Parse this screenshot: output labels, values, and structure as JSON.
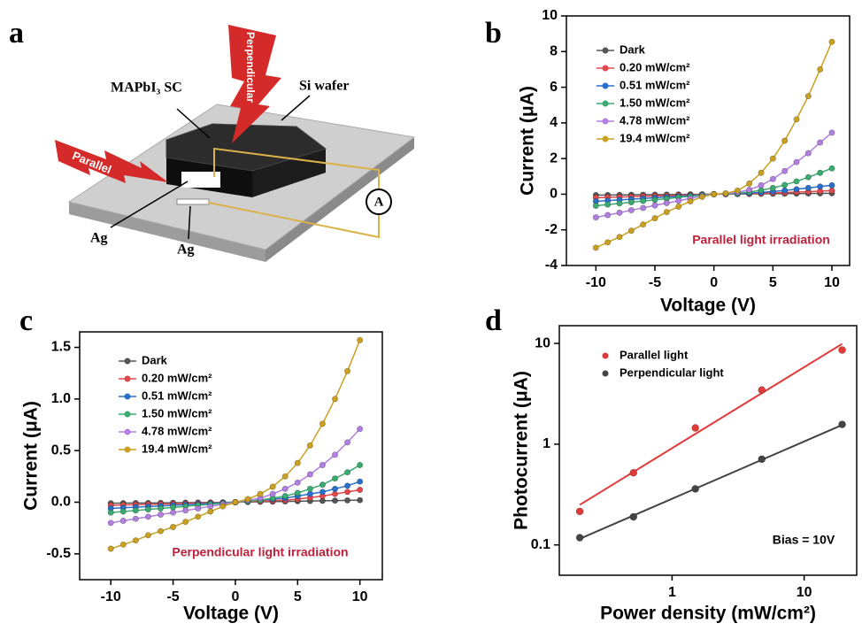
{
  "diagram": {
    "label": "a",
    "perpendicular": "Perpendicular",
    "parallel": "Parallel",
    "crystal": "MAPbI₃ SC",
    "substrate": "Si wafer",
    "electrode_top": "Ag",
    "electrode_bottom": "Ag",
    "meter": "A"
  },
  "chart_data": [
    {
      "type": "line",
      "label": "b",
      "xlabel": "Voltage (V)",
      "ylabel": "Current (μA)",
      "annotation": "Parallel light irradiation",
      "annotation_color": "#c0203a",
      "x": [
        -10,
        -9,
        -8,
        -7,
        -6,
        -5,
        -4,
        -3,
        -2,
        -1,
        0,
        1,
        2,
        3,
        4,
        5,
        6,
        7,
        8,
        9,
        10
      ],
      "xlim": [
        -12.5,
        11.5
      ],
      "xticks": [
        -10,
        -5,
        0,
        5,
        10
      ],
      "ylim": [
        -4,
        10
      ],
      "yticks": [
        -4,
        -2,
        0,
        2,
        4,
        6,
        8,
        10
      ],
      "series": [
        {
          "name": "Dark",
          "color": "#555555",
          "values": [
            -0.05,
            -0.045,
            -0.04,
            -0.035,
            -0.03,
            -0.025,
            -0.02,
            -0.015,
            -0.01,
            -0.005,
            0,
            0.005,
            0.01,
            0.015,
            0.02,
            0.025,
            0.03,
            0.035,
            0.04,
            0.045,
            0.05
          ]
        },
        {
          "name": "0.20 mW/cm²",
          "color": "#e0484c",
          "values": [
            -0.2,
            -0.18,
            -0.16,
            -0.14,
            -0.12,
            -0.1,
            -0.08,
            -0.06,
            -0.04,
            -0.02,
            0,
            0.01,
            0.02,
            0.03,
            0.05,
            0.07,
            0.09,
            0.12,
            0.14,
            0.17,
            0.2
          ]
        },
        {
          "name": "0.51 mW/cm²",
          "color": "#2a6fc9",
          "values": [
            -0.4,
            -0.36,
            -0.32,
            -0.28,
            -0.24,
            -0.2,
            -0.16,
            -0.12,
            -0.08,
            -0.04,
            0,
            0.01,
            0.03,
            0.06,
            0.1,
            0.15,
            0.21,
            0.28,
            0.35,
            0.43,
            0.5
          ]
        },
        {
          "name": "1.50 mW/cm²",
          "color": "#3aaa70",
          "values": [
            -0.65,
            -0.58,
            -0.52,
            -0.45,
            -0.38,
            -0.32,
            -0.25,
            -0.18,
            -0.12,
            -0.05,
            0,
            0.02,
            0.05,
            0.12,
            0.22,
            0.35,
            0.52,
            0.72,
            0.95,
            1.2,
            1.45
          ]
        },
        {
          "name": "4.78 mW/cm²",
          "color": "#b07fe0",
          "values": [
            -1.3,
            -1.17,
            -1.04,
            -0.9,
            -0.77,
            -0.63,
            -0.5,
            -0.37,
            -0.24,
            -0.1,
            0,
            0.03,
            0.1,
            0.25,
            0.5,
            0.85,
            1.3,
            1.8,
            2.3,
            2.9,
            3.45
          ]
        },
        {
          "name": "19.4 mW/cm²",
          "color": "#c9a020",
          "values": [
            -3.0,
            -2.7,
            -2.4,
            -2.05,
            -1.7,
            -1.35,
            -1.0,
            -0.7,
            -0.4,
            -0.15,
            0,
            0.05,
            0.2,
            0.6,
            1.2,
            2.0,
            3.0,
            4.2,
            5.5,
            7.0,
            8.55
          ]
        }
      ]
    },
    {
      "type": "line",
      "label": "c",
      "xlabel": "Voltage (V)",
      "ylabel": "Current (μA)",
      "annotation": "Perpendicular light irradiation",
      "annotation_color": "#c0203a",
      "x": [
        -10,
        -9,
        -8,
        -7,
        -6,
        -5,
        -4,
        -3,
        -2,
        -1,
        0,
        1,
        2,
        3,
        4,
        5,
        6,
        7,
        8,
        9,
        10
      ],
      "xlim": [
        -12.5,
        11.8
      ],
      "xticks": [
        -10,
        -5,
        0,
        5,
        10
      ],
      "ylim": [
        -0.75,
        1.65
      ],
      "yticks": [
        -0.5,
        {
          "value": 0,
          "label": "0.0"
        },
        0.5,
        {
          "value": 1,
          "label": "1.0"
        },
        1.5
      ],
      "series": [
        {
          "name": "Dark",
          "color": "#555555",
          "values": [
            -0.01,
            -0.009,
            -0.008,
            -0.007,
            -0.006,
            -0.005,
            -0.004,
            -0.003,
            -0.002,
            -0.001,
            0,
            0.002,
            0.004,
            0.006,
            0.008,
            0.01,
            0.012,
            0.014,
            0.016,
            0.018,
            0.02
          ]
        },
        {
          "name": "0.20 mW/cm²",
          "color": "#e0484c",
          "values": [
            -0.03,
            -0.027,
            -0.024,
            -0.021,
            -0.018,
            -0.015,
            -0.012,
            -0.009,
            -0.006,
            -0.003,
            0,
            0.005,
            0.01,
            0.015,
            0.02,
            0.03,
            0.045,
            0.06,
            0.08,
            0.1,
            0.12
          ]
        },
        {
          "name": "0.51 mW/cm²",
          "color": "#2a6fc9",
          "values": [
            -0.06,
            -0.054,
            -0.048,
            -0.042,
            -0.036,
            -0.03,
            -0.024,
            -0.018,
            -0.012,
            -0.006,
            0,
            0.01,
            0.02,
            0.03,
            0.04,
            0.06,
            0.08,
            0.1,
            0.13,
            0.16,
            0.2
          ]
        },
        {
          "name": "1.50 mW/cm²",
          "color": "#3aaa70",
          "values": [
            -0.1,
            -0.09,
            -0.08,
            -0.07,
            -0.06,
            -0.05,
            -0.04,
            -0.03,
            -0.02,
            -0.01,
            0,
            0.01,
            0.02,
            0.04,
            0.06,
            0.09,
            0.13,
            0.17,
            0.23,
            0.29,
            0.36
          ]
        },
        {
          "name": "4.78 mW/cm²",
          "color": "#b07fe0",
          "values": [
            -0.2,
            -0.18,
            -0.16,
            -0.14,
            -0.12,
            -0.1,
            -0.08,
            -0.06,
            -0.04,
            -0.02,
            0,
            0.02,
            0.04,
            0.08,
            0.13,
            0.19,
            0.27,
            0.36,
            0.46,
            0.58,
            0.71
          ]
        },
        {
          "name": "19.4 mW/cm²",
          "color": "#c9a020",
          "values": [
            -0.45,
            -0.41,
            -0.37,
            -0.32,
            -0.28,
            -0.24,
            -0.19,
            -0.14,
            -0.09,
            -0.04,
            0,
            0.03,
            0.08,
            0.15,
            0.25,
            0.38,
            0.55,
            0.76,
            1.0,
            1.27,
            1.57
          ]
        }
      ]
    },
    {
      "type": "scatter",
      "label": "d",
      "xlabel": "Power density (mW/cm²)",
      "ylabel": "Photocurrent (μA)",
      "annotation": "Bias = 10V",
      "annotation_color": "#000000",
      "xscale": "log",
      "yscale": "log",
      "x": [
        0.2,
        0.51,
        1.5,
        4.78,
        19.4
      ],
      "xlim": [
        0.14,
        25
      ],
      "xticks": [
        1,
        10
      ],
      "ylim": [
        0.05,
        15
      ],
      "yticks": [
        0.1,
        1,
        10
      ],
      "series": [
        {
          "name": "Parallel light",
          "color": "#e03a3a",
          "values": [
            0.215,
            0.52,
            1.45,
            3.45,
            8.6
          ],
          "fit": {
            "x": [
              0.2,
              19.4
            ],
            "values": [
              0.25,
              9.9
            ]
          }
        },
        {
          "name": "Perpendicular light",
          "color": "#444444",
          "values": [
            0.118,
            0.19,
            0.36,
            0.71,
            1.57
          ],
          "fit": {
            "x": [
              0.2,
              19.4
            ],
            "values": [
              0.115,
              1.55
            ]
          }
        }
      ]
    }
  ]
}
